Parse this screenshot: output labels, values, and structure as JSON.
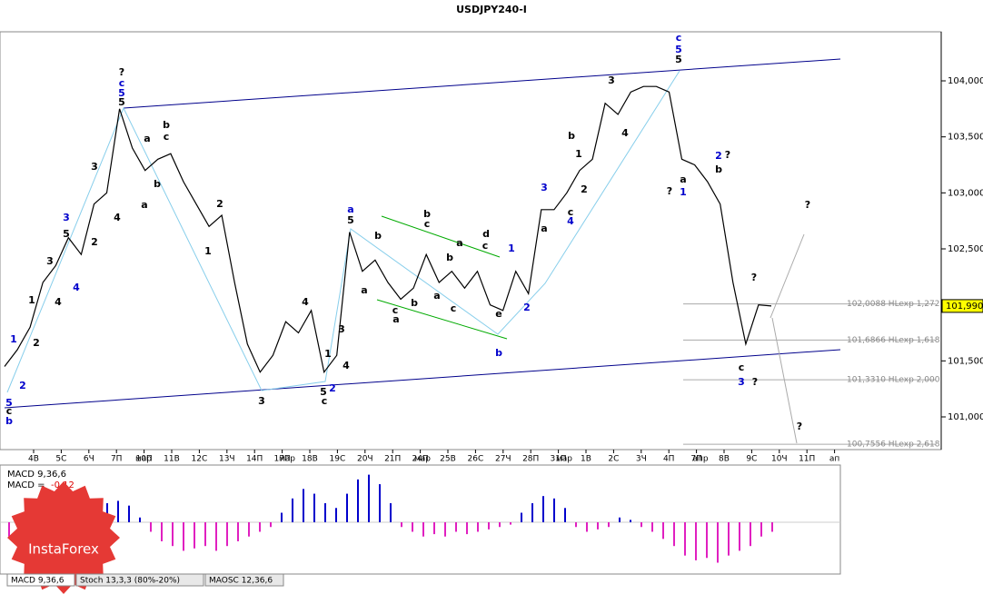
{
  "chart_data": {
    "type": "line",
    "title": "USDJPY240-I",
    "x": [
      0,
      1,
      2,
      3,
      4,
      5,
      6,
      7,
      8,
      9,
      10,
      11,
      12,
      13,
      14,
      15,
      16,
      17,
      18,
      19,
      20,
      21,
      22,
      23,
      24,
      25,
      26,
      27,
      28,
      29,
      30,
      31,
      32,
      33,
      34,
      35,
      36,
      37,
      38,
      39,
      40,
      41,
      42,
      43,
      44,
      45,
      46,
      47,
      48,
      49,
      50,
      51,
      52,
      53,
      54,
      55,
      56,
      57,
      58,
      59,
      60
    ],
    "xlim": [
      0,
      60
    ],
    "series": [
      {
        "color": "#000000",
        "values": [
          101.45,
          101.6,
          101.8,
          102.2,
          102.35,
          102.6,
          102.45,
          102.9,
          103.0,
          103.75,
          103.4,
          103.2,
          103.3,
          103.35,
          103.1,
          102.9,
          102.7,
          102.8,
          102.2,
          101.65,
          101.4,
          101.55,
          101.85,
          101.75,
          101.95,
          101.4,
          101.55,
          102.65,
          102.3,
          102.4,
          102.2,
          102.05,
          102.15,
          102.45,
          102.2,
          102.3,
          102.15,
          102.3,
          102.0,
          101.95,
          102.3,
          102.1,
          102.85,
          102.85,
          103.0,
          103.2,
          103.3,
          103.8,
          103.7,
          103.9,
          103.95,
          103.95,
          103.9,
          103.3,
          103.25,
          103.1,
          102.9,
          102.2,
          101.65,
          102.0,
          101.99
        ]
      }
    ],
    "ylim": [
      100.708,
      104.438
    ],
    "yticks": [
      {
        "value": 104,
        "label": "104,000"
      },
      {
        "value": 103.5,
        "label": "103,500"
      },
      {
        "value": 103,
        "label": "103,000"
      },
      {
        "value": 102.5,
        "label": "102,500"
      },
      {
        "value": 101.5,
        "label": "101,500"
      },
      {
        "value": 101,
        "label": "101,000"
      }
    ],
    "current_price": {
      "value": 101.99,
      "label": "101,990"
    },
    "levels": [
      {
        "value": 102.0088,
        "label": "102,0088 HLexp 1,272"
      },
      {
        "value": 101.6866,
        "label": "101,6866 HLexp 1,618"
      },
      {
        "value": 101.331,
        "label": "101,3310 HLexp 2,000"
      },
      {
        "value": 100.7556,
        "label": "100,7556 HLexp 2,618"
      }
    ],
    "categories": [
      "4В",
      "5С",
      "6Ч",
      "7П",
      "10П",
      "11В",
      "12С",
      "13Ч",
      "14П",
      "17П",
      "18В",
      "19С",
      "20Ч",
      "21П",
      "24П",
      "25В",
      "26С",
      "27Ч",
      "28П",
      "31П",
      "1В",
      "2С",
      "3Ч",
      "4П",
      "7П",
      "8В",
      "9С",
      "10Ч",
      "11П",
      "ап"
    ],
    "months": [
      "мар",
      "мар",
      "мар",
      "мар",
      "апр"
    ],
    "waves": [
      "?",
      "c",
      "5",
      "5",
      "b",
      "c",
      "a",
      "b",
      "a",
      "4",
      "3",
      "2",
      "3",
      "5",
      "4",
      "4",
      "3",
      "2",
      "1",
      "1",
      "2",
      "5",
      "c",
      "b",
      "2",
      "1",
      "3",
      "4",
      "3",
      "1",
      "2",
      "4",
      "5",
      "c",
      "a",
      "5",
      "b",
      "c",
      "d",
      "c",
      "a",
      "b",
      "a",
      "c",
      "a",
      "b",
      "c",
      "a",
      "b",
      "e",
      "b",
      "1",
      "2",
      "3",
      "a",
      "4",
      "b",
      "c",
      "1",
      "2",
      "3",
      "4",
      "c",
      "5",
      "5",
      "?",
      "a",
      "1",
      "2",
      "?",
      "b",
      "?",
      "?",
      "c",
      "3",
      "?",
      "?"
    ],
    "macd": {
      "label": "MACD 9,36,6",
      "value_text": "MACD = ",
      "value_label": "-0,12",
      "values": [
        -0.3,
        -0.35,
        -0.2,
        -0.1,
        -0.05,
        -0.1,
        -0.2,
        0.1,
        0.3,
        0.4,
        0.45,
        0.35,
        0.1,
        -0.2,
        -0.4,
        -0.5,
        -0.6,
        -0.55,
        -0.5,
        -0.6,
        -0.5,
        -0.4,
        -0.3,
        -0.2,
        -0.1,
        0.2,
        0.5,
        0.7,
        0.6,
        0.4,
        0.3,
        0.6,
        0.9,
        1.0,
        0.8,
        0.4,
        -0.1,
        -0.2,
        -0.3,
        -0.25,
        -0.3,
        -0.2,
        -0.25,
        -0.2,
        -0.15,
        -0.1,
        -0.05,
        0.2,
        0.4,
        0.55,
        0.5,
        0.3,
        -0.1,
        -0.2,
        -0.15,
        -0.1,
        0.1,
        0.05,
        -0.1,
        -0.2,
        -0.35,
        -0.5,
        -0.7,
        -0.8,
        -0.75,
        -0.85,
        -0.7,
        -0.6,
        -0.5,
        -0.3,
        -0.2
      ],
      "ylim": [
        -1.05,
        1.05
      ]
    },
    "tabs": [
      "MACD 9,36,6",
      "Stoch 13,3,3 (80%-20%)",
      "MAOSC 12,36,6"
    ],
    "logo": "InstaForex"
  }
}
